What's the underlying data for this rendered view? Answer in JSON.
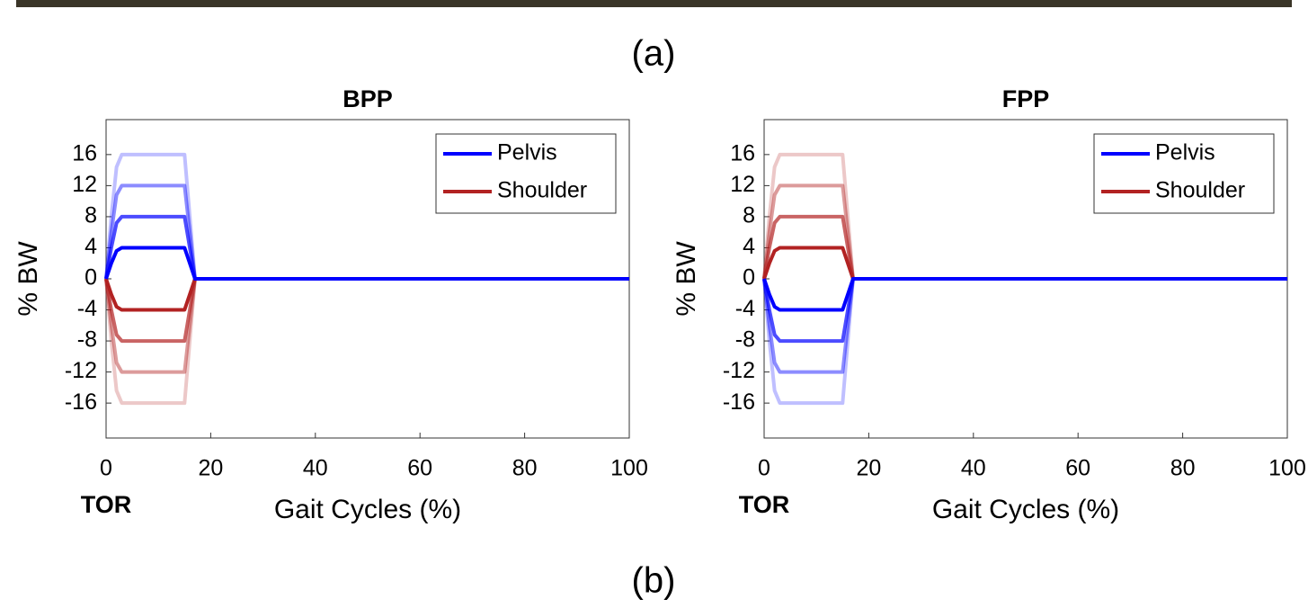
{
  "captions": [
    "(a)",
    "(b)"
  ],
  "chart_data": [
    {
      "type": "line",
      "title": "BPP",
      "xlabel": "Gait Cycles (%)",
      "ylabel": "% BW",
      "annotation": "TOR",
      "x": [
        0,
        1,
        2,
        3,
        5,
        8,
        10,
        13,
        14,
        15,
        16,
        17,
        18,
        20,
        30,
        40,
        50,
        60,
        70,
        80,
        90,
        100
      ],
      "xlim": [
        0,
        100
      ],
      "xticks": [
        0,
        20,
        40,
        60,
        80,
        100
      ],
      "ylim": [
        -20.5,
        20.5
      ],
      "yticks": [
        16,
        12,
        8,
        4,
        0,
        -4,
        -8,
        -12,
        -16
      ],
      "legend": "upper right",
      "series": [
        {
          "name": "Pelvis",
          "color": "#0000ff",
          "alpha": 1,
          "values": [
            0,
            2,
            3.6,
            4,
            4,
            4,
            4,
            4,
            4,
            4,
            2,
            0,
            0,
            0,
            0,
            0,
            0,
            0,
            0,
            0,
            0,
            0
          ]
        },
        {
          "name": "Pelvis",
          "color": "#0000ff",
          "alpha": 0.7,
          "values": [
            0,
            4,
            7.2,
            8,
            8,
            8,
            8,
            8,
            8,
            8,
            4,
            0,
            0,
            0,
            0,
            0,
            0,
            0,
            0,
            0,
            0,
            0
          ]
        },
        {
          "name": "Pelvis",
          "color": "#0000ff",
          "alpha": 0.45,
          "values": [
            0,
            6,
            10.8,
            12,
            12,
            12,
            12,
            12,
            12,
            12,
            6,
            0,
            0,
            0,
            0,
            0,
            0,
            0,
            0,
            0,
            0,
            0
          ]
        },
        {
          "name": "Pelvis",
          "color": "#0000ff",
          "alpha": 0.25,
          "values": [
            0,
            8,
            14.4,
            16,
            16,
            16,
            16,
            16,
            16,
            16,
            8,
            0,
            0,
            0,
            0,
            0,
            0,
            0,
            0,
            0,
            0,
            0
          ]
        },
        {
          "name": "Shoulder",
          "color": "#b22222",
          "alpha": 1,
          "values": [
            0,
            -2,
            -3.6,
            -4,
            -4,
            -4,
            -4,
            -4,
            -4,
            -4,
            -2,
            0,
            0,
            0,
            0,
            0,
            0,
            0,
            0,
            0,
            0,
            0
          ]
        },
        {
          "name": "Shoulder",
          "color": "#b22222",
          "alpha": 0.7,
          "values": [
            0,
            -4,
            -7.2,
            -8,
            -8,
            -8,
            -8,
            -8,
            -8,
            -8,
            -4,
            0,
            0,
            0,
            0,
            0,
            0,
            0,
            0,
            0,
            0,
            0
          ]
        },
        {
          "name": "Shoulder",
          "color": "#b22222",
          "alpha": 0.45,
          "values": [
            0,
            -6,
            -10.8,
            -12,
            -12,
            -12,
            -12,
            -12,
            -12,
            -12,
            -6,
            0,
            0,
            0,
            0,
            0,
            0,
            0,
            0,
            0,
            0,
            0
          ]
        },
        {
          "name": "Shoulder",
          "color": "#b22222",
          "alpha": 0.25,
          "values": [
            0,
            -8,
            -14.4,
            -16,
            -16,
            -16,
            -16,
            -16,
            -16,
            -16,
            -8,
            0,
            0,
            0,
            0,
            0,
            0,
            0,
            0,
            0,
            0,
            0
          ]
        }
      ]
    },
    {
      "type": "line",
      "title": "FPP",
      "xlabel": "Gait Cycles (%)",
      "ylabel": "% BW",
      "annotation": "TOR",
      "x": [
        0,
        1,
        2,
        3,
        5,
        8,
        10,
        13,
        14,
        15,
        16,
        17,
        18,
        20,
        30,
        40,
        50,
        60,
        70,
        80,
        90,
        100
      ],
      "xlim": [
        0,
        100
      ],
      "xticks": [
        0,
        20,
        40,
        60,
        80,
        100
      ],
      "ylim": [
        -20.5,
        20.5
      ],
      "yticks": [
        16,
        12,
        8,
        4,
        0,
        -4,
        -8,
        -12,
        -16
      ],
      "legend": "upper right",
      "series": [
        {
          "name": "Pelvis",
          "color": "#0000ff",
          "alpha": 1,
          "values": [
            0,
            -2,
            -3.6,
            -4,
            -4,
            -4,
            -4,
            -4,
            -4,
            -4,
            -2,
            0,
            0,
            0,
            0,
            0,
            0,
            0,
            0,
            0,
            0,
            0
          ]
        },
        {
          "name": "Pelvis",
          "color": "#0000ff",
          "alpha": 0.7,
          "values": [
            0,
            -4,
            -7.2,
            -8,
            -8,
            -8,
            -8,
            -8,
            -8,
            -8,
            -4,
            0,
            0,
            0,
            0,
            0,
            0,
            0,
            0,
            0,
            0,
            0
          ]
        },
        {
          "name": "Pelvis",
          "color": "#0000ff",
          "alpha": 0.45,
          "values": [
            0,
            -6,
            -10.8,
            -12,
            -12,
            -12,
            -12,
            -12,
            -12,
            -12,
            -6,
            0,
            0,
            0,
            0,
            0,
            0,
            0,
            0,
            0,
            0,
            0
          ]
        },
        {
          "name": "Pelvis",
          "color": "#0000ff",
          "alpha": 0.25,
          "values": [
            0,
            -8,
            -14.4,
            -16,
            -16,
            -16,
            -16,
            -16,
            -16,
            -16,
            -8,
            0,
            0,
            0,
            0,
            0,
            0,
            0,
            0,
            0,
            0,
            0
          ]
        },
        {
          "name": "Shoulder",
          "color": "#b22222",
          "alpha": 1,
          "values": [
            0,
            2,
            3.6,
            4,
            4,
            4,
            4,
            4,
            4,
            4,
            2,
            0,
            0,
            0,
            0,
            0,
            0,
            0,
            0,
            0,
            0,
            0
          ]
        },
        {
          "name": "Shoulder",
          "color": "#b22222",
          "alpha": 0.7,
          "values": [
            0,
            4,
            7.2,
            8,
            8,
            8,
            8,
            8,
            8,
            8,
            4,
            0,
            0,
            0,
            0,
            0,
            0,
            0,
            0,
            0,
            0,
            0
          ]
        },
        {
          "name": "Shoulder",
          "color": "#b22222",
          "alpha": 0.45,
          "values": [
            0,
            6,
            10.8,
            12,
            12,
            12,
            12,
            12,
            12,
            12,
            6,
            0,
            0,
            0,
            0,
            0,
            0,
            0,
            0,
            0,
            0,
            0
          ]
        },
        {
          "name": "Shoulder",
          "color": "#b22222",
          "alpha": 0.25,
          "values": [
            0,
            8,
            14.4,
            16,
            16,
            16,
            16,
            16,
            16,
            16,
            8,
            0,
            0,
            0,
            0,
            0,
            0,
            0,
            0,
            0,
            0,
            0
          ]
        }
      ]
    }
  ]
}
